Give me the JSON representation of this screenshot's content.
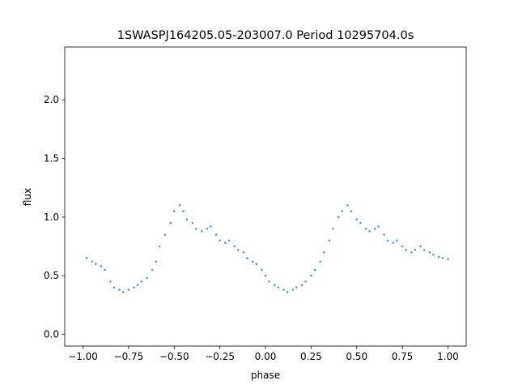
{
  "chart_data": {
    "type": "scatter",
    "title": "1SWASPJ164205.05-203007.0 Period 10295704.0s",
    "xlabel": "phase",
    "ylabel": "flux",
    "xlim": [
      -1.1,
      1.1
    ],
    "ylim": [
      -0.1,
      2.45
    ],
    "xticks": [
      -1.0,
      -0.75,
      -0.5,
      -0.25,
      0.0,
      0.25,
      0.5,
      0.75,
      1.0
    ],
    "xtick_labels": [
      "−1.00",
      "−0.75",
      "−0.50",
      "−0.25",
      "0.00",
      "0.25",
      "0.50",
      "0.75",
      "1.00"
    ],
    "yticks": [
      0.0,
      0.5,
      1.0,
      1.5,
      2.0
    ],
    "ytick_labels": [
      "0.0",
      "0.5",
      "1.0",
      "1.5",
      "2.0"
    ],
    "grid": false,
    "legend": false,
    "marker_color": "#1f77b4",
    "series": [
      {
        "x": [
          -0.98,
          -0.95,
          -0.93,
          -0.9,
          -0.88,
          -0.85,
          -0.83,
          -0.8,
          -0.78,
          -0.75,
          -0.72,
          -0.7,
          -0.68,
          -0.65,
          -0.62,
          -0.6,
          -0.58,
          -0.55,
          -0.52,
          -0.5,
          -0.47,
          -0.45,
          -0.43,
          -0.4,
          -0.38,
          -0.35,
          -0.32,
          -0.3,
          -0.27,
          -0.25,
          -0.22,
          -0.2,
          -0.17,
          -0.15,
          -0.12,
          -0.1,
          -0.07,
          -0.05,
          -0.02,
          0.0,
          0.02,
          0.05,
          0.07,
          0.1,
          0.12,
          0.15,
          0.17,
          0.2,
          0.22,
          0.25,
          0.27,
          0.3,
          0.32,
          0.35,
          0.37,
          0.4,
          0.42,
          0.45,
          0.47,
          0.5,
          0.52,
          0.55,
          0.57,
          0.6,
          0.62,
          0.65,
          0.67,
          0.7,
          0.72,
          0.75,
          0.77,
          0.8,
          0.82,
          0.85,
          0.87,
          0.9,
          0.92,
          0.95,
          0.97,
          1.0
        ],
        "y": [
          0.65,
          0.62,
          0.6,
          0.58,
          0.55,
          0.45,
          0.4,
          0.38,
          0.36,
          0.38,
          0.4,
          0.42,
          0.45,
          0.48,
          0.55,
          0.62,
          0.75,
          0.85,
          0.95,
          1.05,
          1.1,
          1.05,
          0.98,
          0.95,
          0.9,
          0.88,
          0.9,
          0.92,
          0.85,
          0.8,
          0.78,
          0.8,
          0.75,
          0.72,
          0.7,
          0.65,
          0.62,
          0.6,
          0.55,
          0.5,
          0.45,
          0.42,
          0.4,
          0.38,
          0.36,
          0.38,
          0.4,
          0.42,
          0.45,
          0.5,
          0.55,
          0.62,
          0.7,
          0.8,
          0.9,
          1.0,
          1.05,
          1.1,
          1.05,
          0.98,
          0.95,
          0.9,
          0.88,
          0.9,
          0.92,
          0.85,
          0.8,
          0.78,
          0.8,
          0.75,
          0.72,
          0.7,
          0.72,
          0.75,
          0.72,
          0.7,
          0.68,
          0.66,
          0.65,
          0.64
        ]
      }
    ]
  }
}
